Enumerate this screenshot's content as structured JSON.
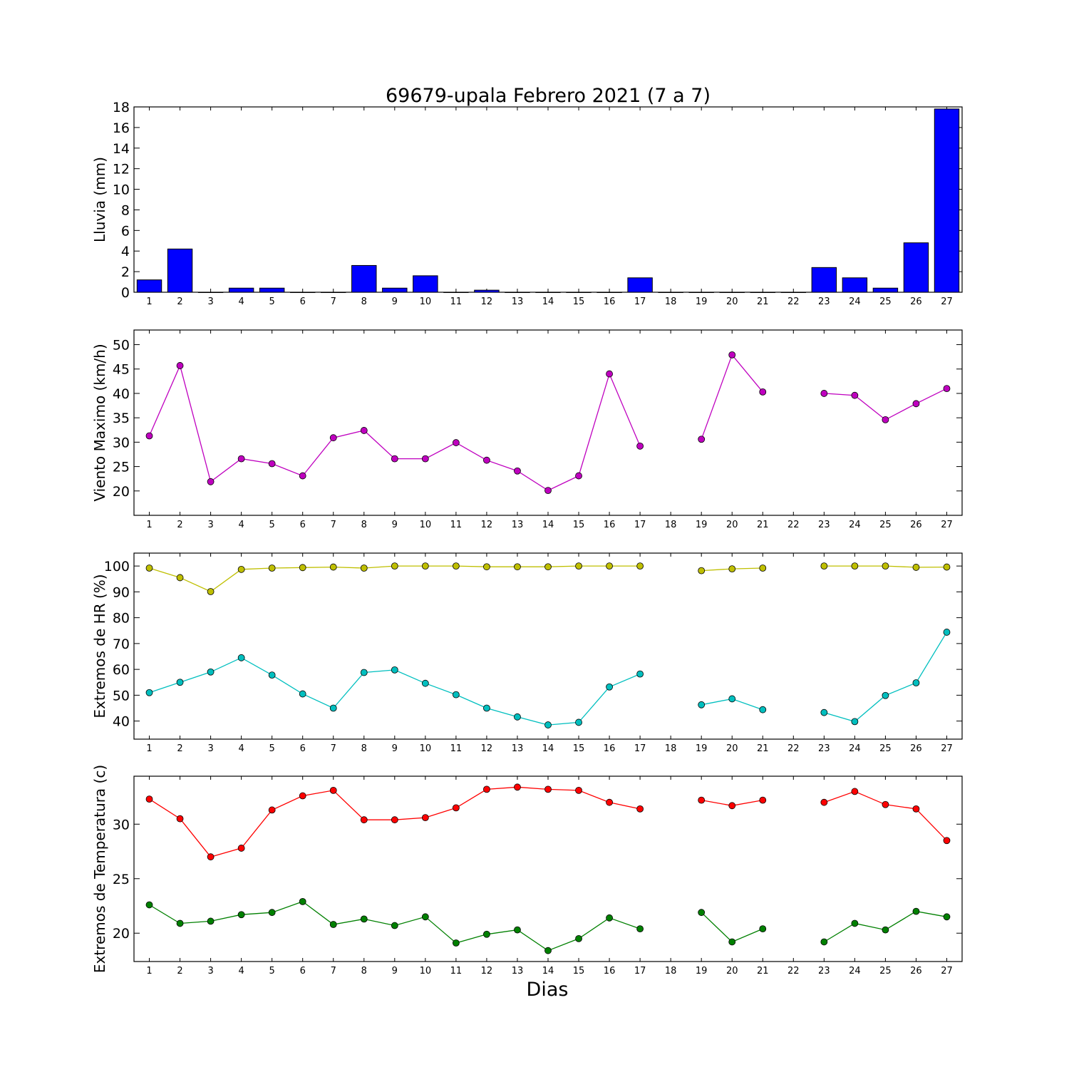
{
  "title": "69679-upala Febrero 2021  (7 a 7)",
  "xlabel": "Dias",
  "colors": {
    "rain": "#0000ff",
    "wind": "#bf00bf",
    "hr_max": "#bfbf00",
    "hr_min": "#00bfbf",
    "temp_max": "#ff0000",
    "temp_min": "#008000"
  },
  "chart_data": [
    {
      "type": "bar",
      "ylabel": "Lluvia (mm)",
      "ylim": [
        0,
        18
      ],
      "yticks": [
        0,
        2,
        4,
        6,
        8,
        10,
        12,
        14,
        16,
        18
      ],
      "x": [
        1,
        2,
        3,
        4,
        5,
        6,
        7,
        8,
        9,
        10,
        11,
        12,
        13,
        14,
        15,
        16,
        17,
        18,
        19,
        20,
        21,
        22,
        23,
        24,
        25,
        26,
        27
      ],
      "values": [
        1.2,
        4.2,
        0,
        0.4,
        0.4,
        0,
        0,
        2.6,
        0.4,
        1.6,
        0,
        0.2,
        0,
        0,
        0,
        0,
        1.4,
        0,
        0,
        0,
        0,
        0,
        2.4,
        1.4,
        0.4,
        4.8,
        17.8
      ]
    },
    {
      "type": "line",
      "ylabel": "Viento Maximo (km/h)",
      "ylim": [
        15,
        53
      ],
      "yticks": [
        20,
        25,
        30,
        35,
        40,
        45,
        50
      ],
      "x": [
        1,
        2,
        3,
        4,
        5,
        6,
        7,
        8,
        9,
        10,
        11,
        12,
        13,
        14,
        15,
        16,
        17,
        18,
        19,
        20,
        21,
        22,
        23,
        24,
        25,
        26,
        27
      ],
      "series": [
        {
          "values": [
            31.3,
            45.7,
            21.9,
            26.6,
            25.6,
            23.1,
            30.9,
            32.4,
            26.6,
            26.6,
            29.9,
            26.3,
            24.1,
            20.1,
            23.1,
            44.0,
            29.2,
            null,
            30.6,
            47.9,
            40.3,
            null,
            40.0,
            39.6,
            34.6,
            37.9,
            41.0
          ]
        }
      ]
    },
    {
      "type": "line",
      "ylabel": "Extremos de HR (%)",
      "ylim": [
        33,
        105
      ],
      "yticks": [
        40,
        50,
        60,
        70,
        80,
        90,
        100
      ],
      "x": [
        1,
        2,
        3,
        4,
        5,
        6,
        7,
        8,
        9,
        10,
        11,
        12,
        13,
        14,
        15,
        16,
        17,
        18,
        19,
        20,
        21,
        22,
        23,
        24,
        25,
        26,
        27
      ],
      "series": [
        {
          "values": [
            99.2,
            95.5,
            90.1,
            98.7,
            99.2,
            99.4,
            99.6,
            99.2,
            100,
            100,
            100,
            99.7,
            99.7,
            99.7,
            100,
            100,
            100,
            null,
            98.2,
            98.9,
            99.2,
            null,
            100,
            100,
            100,
            99.5,
            99.6
          ]
        },
        {
          "values": [
            51.0,
            55.0,
            59.0,
            64.5,
            57.8,
            50.5,
            45.0,
            58.8,
            59.8,
            54.6,
            50.2,
            45.0,
            41.6,
            38.5,
            39.5,
            53.2,
            58.2,
            null,
            46.3,
            48.6,
            44.4,
            null,
            43.3,
            39.8,
            49.9,
            54.8,
            74.4
          ]
        }
      ]
    },
    {
      "type": "line",
      "ylabel": "Extremos de Temperatura (c)",
      "ylim": [
        17.4,
        34.4
      ],
      "yticks": [
        20,
        25,
        30
      ],
      "x": [
        1,
        2,
        3,
        4,
        5,
        6,
        7,
        8,
        9,
        10,
        11,
        12,
        13,
        14,
        15,
        16,
        17,
        18,
        19,
        20,
        21,
        22,
        23,
        24,
        25,
        26,
        27
      ],
      "series": [
        {
          "values": [
            32.3,
            30.5,
            27.0,
            27.8,
            31.3,
            32.6,
            33.1,
            30.4,
            30.4,
            30.6,
            31.5,
            33.2,
            33.4,
            33.2,
            33.1,
            32.0,
            31.4,
            null,
            32.2,
            31.7,
            32.2,
            null,
            32.0,
            33.0,
            31.8,
            31.4,
            28.5
          ]
        },
        {
          "values": [
            22.6,
            20.9,
            21.1,
            21.7,
            21.9,
            22.9,
            20.8,
            21.3,
            20.7,
            21.5,
            19.1,
            19.9,
            20.3,
            18.4,
            19.5,
            21.4,
            20.4,
            null,
            21.9,
            19.2,
            20.4,
            null,
            19.2,
            20.9,
            20.3,
            22.0,
            21.5
          ]
        }
      ]
    }
  ]
}
